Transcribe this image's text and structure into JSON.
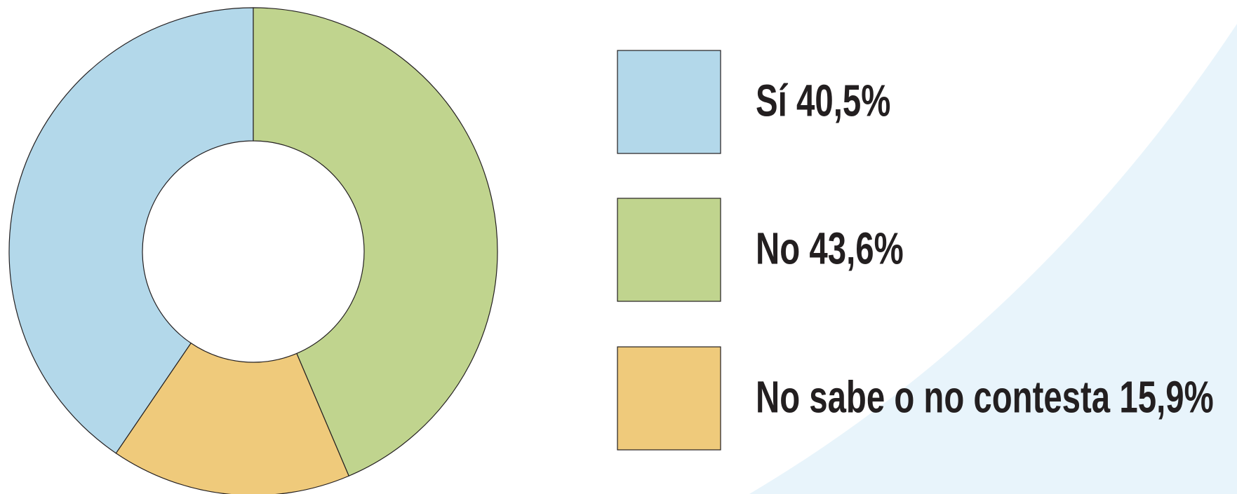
{
  "chart_data": {
    "type": "donut",
    "categories": [
      "Sí",
      "No",
      "No sabe o no contesta"
    ],
    "values": [
      40.5,
      43.6,
      15.9
    ],
    "value_labels": [
      "40,5%",
      "43,6%",
      "15,9%"
    ],
    "colors": [
      "#b3d8ea",
      "#c0d48e",
      "#efca7b"
    ]
  }
}
